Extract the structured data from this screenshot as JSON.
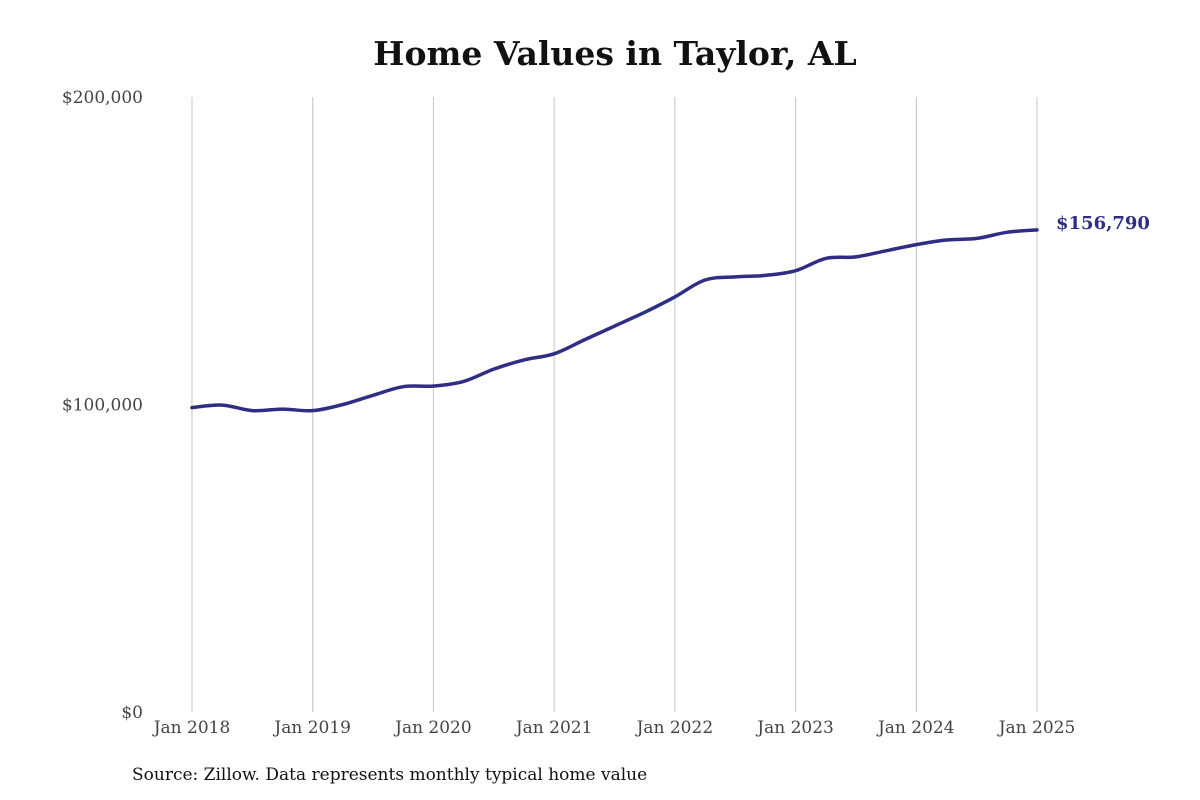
{
  "chart_data": {
    "type": "line",
    "title": "Home Values in Taylor, AL",
    "xlabel": "",
    "ylabel": "",
    "x_tick_labels": [
      "Jan 2018",
      "Jan 2019",
      "Jan 2020",
      "Jan 2021",
      "Jan 2022",
      "Jan 2023",
      "Jan 2024",
      "Jan 2025"
    ],
    "y_tick_labels": [
      "$0",
      "$100,000",
      "$200,000"
    ],
    "y_ticks": [
      0,
      100000,
      200000
    ],
    "ylim": [
      0,
      200000
    ],
    "xlim": [
      "2018-01",
      "2025-01"
    ],
    "grid": "vertical lines at x ticks",
    "legend": "none",
    "line_color": "#2e2e85",
    "end_label": "$156,790",
    "series": [
      {
        "x": [
          "2018-01",
          "2018-04",
          "2018-07",
          "2018-10",
          "2019-01",
          "2019-04",
          "2019-07",
          "2019-10",
          "2020-01",
          "2020-04",
          "2020-07",
          "2020-10",
          "2021-01",
          "2021-04",
          "2021-07",
          "2021-10",
          "2022-01",
          "2022-04",
          "2022-07",
          "2022-10",
          "2023-01",
          "2023-04",
          "2023-07",
          "2023-10",
          "2024-01",
          "2024-04",
          "2024-07",
          "2024-10",
          "2025-01"
        ],
        "values": [
          99000,
          99800,
          98000,
          98500,
          98000,
          100000,
          103000,
          105800,
          106000,
          107500,
          111500,
          114500,
          116500,
          121000,
          125500,
          130000,
          135000,
          140500,
          141500,
          142000,
          143500,
          147500,
          148000,
          150000,
          152000,
          153500,
          154000,
          156000,
          156790
        ]
      }
    ]
  },
  "source_note": "Source: Zillow. Data represents monthly typical home value"
}
